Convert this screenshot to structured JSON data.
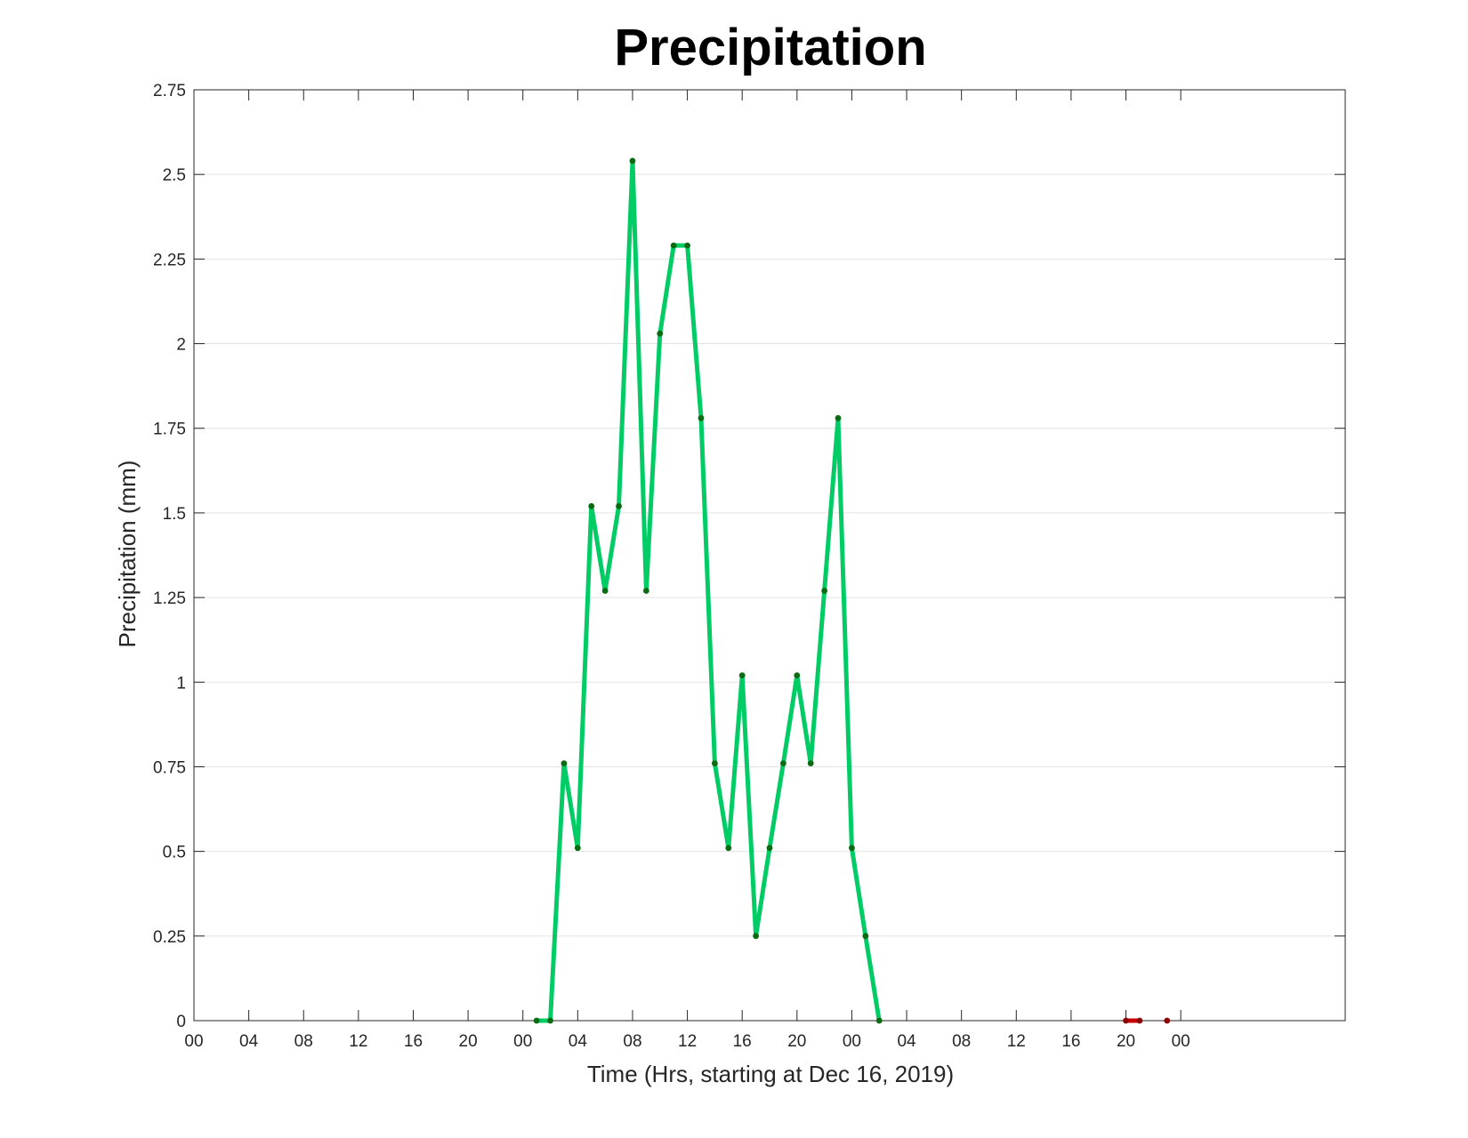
{
  "chart_data": {
    "type": "line",
    "title": "Precipitation",
    "xlabel": "Time (Hrs, starting at Dec 16, 2019)",
    "ylabel": "Precipitation (mm)",
    "ylim": [
      0,
      2.75
    ],
    "xlim": [
      "2019-12-16 00:00",
      "2019-12-19 12:00"
    ],
    "x_unit": "hours",
    "grid": "horizontal",
    "yticks": [
      "0",
      "0.25",
      "0.5",
      "0.75",
      "1",
      "1.25",
      "1.5",
      "1.75",
      "2",
      "2.25",
      "2.5",
      "2.75"
    ],
    "xticks": [
      "00",
      "04",
      "08",
      "12",
      "16",
      "20",
      "00",
      "04",
      "08",
      "12",
      "16",
      "20",
      "00",
      "04",
      "08",
      "12",
      "16",
      "20",
      "00"
    ],
    "series": [
      {
        "color": "#00cc66",
        "marker_color": "#0b6b12",
        "points": [
          {
            "t": "2019-12-17 01:00",
            "value": 0
          },
          {
            "t": "2019-12-17 02:00",
            "value": 0
          },
          {
            "t": "2019-12-17 03:00",
            "value": 0.76
          },
          {
            "t": "2019-12-17 04:00",
            "value": 0.51
          },
          {
            "t": "2019-12-17 05:00",
            "value": 1.52
          },
          {
            "t": "2019-12-17 06:00",
            "value": 1.27
          },
          {
            "t": "2019-12-17 07:00",
            "value": 1.52
          },
          {
            "t": "2019-12-17 08:00",
            "value": 2.54
          },
          {
            "t": "2019-12-17 09:00",
            "value": 1.27
          },
          {
            "t": "2019-12-17 10:00",
            "value": 2.03
          },
          {
            "t": "2019-12-17 11:00",
            "value": 2.29
          },
          {
            "t": "2019-12-17 12:00",
            "value": 2.29
          },
          {
            "t": "2019-12-17 13:00",
            "value": 1.78
          },
          {
            "t": "2019-12-17 14:00",
            "value": 0.76
          },
          {
            "t": "2019-12-17 15:00",
            "value": 0.51
          },
          {
            "t": "2019-12-17 16:00",
            "value": 1.02
          },
          {
            "t": "2019-12-17 17:00",
            "value": 0.25
          },
          {
            "t": "2019-12-17 18:00",
            "value": 0.51
          },
          {
            "t": "2019-12-17 19:00",
            "value": 0.76
          },
          {
            "t": "2019-12-17 20:00",
            "value": 1.02
          },
          {
            "t": "2019-12-17 21:00",
            "value": 0.76
          },
          {
            "t": "2019-12-17 22:00",
            "value": 1.27
          },
          {
            "t": "2019-12-17 23:00",
            "value": 1.78
          },
          {
            "t": "2019-12-18 00:00",
            "value": 0.51
          },
          {
            "t": "2019-12-18 01:00",
            "value": 0.25
          },
          {
            "t": "2019-12-18 02:00",
            "value": 0
          }
        ]
      },
      {
        "color": "#cc0000",
        "marker_color": "#8b0000",
        "points": [
          {
            "t": "2019-12-18 20:00",
            "value": 0
          },
          {
            "t": "2019-12-18 21:00",
            "value": 0
          }
        ]
      },
      {
        "color": "#cc0000",
        "marker_color": "#8b0000",
        "points": [
          {
            "t": "2019-12-18 23:00",
            "value": 0
          }
        ]
      }
    ]
  }
}
